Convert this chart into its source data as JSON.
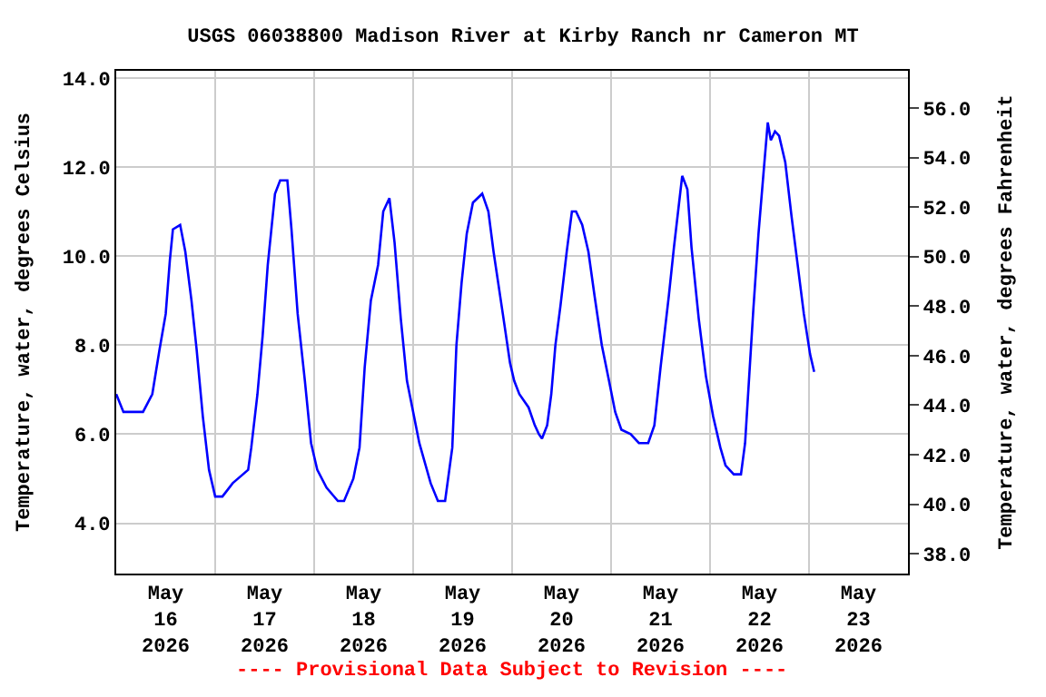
{
  "chart_data": {
    "type": "line",
    "title": "USGS 06038800 Madison River at Kirby Ranch nr Cameron MT",
    "ylabel": "Temperature, water, degrees Celsius",
    "y2label": "Temperature, water, degrees Fahrenheit",
    "annotations": [
      "---- Provisional Data Subject to Revision ----"
    ],
    "x": [
      "2026-05-16T00:00",
      "2026-05-16T01:45",
      "2026-05-16T06:30",
      "2026-05-16T08:45",
      "2026-05-16T10:30",
      "2026-05-16T12:00",
      "2026-05-16T13:00",
      "2026-05-16T13:45",
      "2026-05-16T15:30",
      "2026-05-16T16:45",
      "2026-05-16T18:15",
      "2026-05-16T19:30",
      "2026-05-16T21:00",
      "2026-05-16T22:30",
      "2026-05-17T00:00",
      "2026-05-17T01:45",
      "2026-05-17T04:15",
      "2026-05-17T08:00",
      "2026-05-17T08:45",
      "2026-05-17T10:15",
      "2026-05-17T11:30",
      "2026-05-17T12:45",
      "2026-05-17T14:30",
      "2026-05-17T15:45",
      "2026-05-17T17:30",
      "2026-05-17T18:30",
      "2026-05-17T20:00",
      "2026-05-17T21:45",
      "2026-05-17T23:15",
      "2026-05-18T00:45",
      "2026-05-18T03:00",
      "2026-05-18T05:45",
      "2026-05-18T07:15",
      "2026-05-18T09:30",
      "2026-05-18T11:00",
      "2026-05-18T12:15",
      "2026-05-18T13:45",
      "2026-05-18T15:30",
      "2026-05-18T16:45",
      "2026-05-18T18:15",
      "2026-05-18T19:30",
      "2026-05-18T21:00",
      "2026-05-18T22:30",
      "2026-05-19T01:30",
      "2026-05-19T04:15",
      "2026-05-19T06:00",
      "2026-05-19T07:45",
      "2026-05-19T09:30",
      "2026-05-19T10:30",
      "2026-05-19T11:45",
      "2026-05-19T13:00",
      "2026-05-19T14:30",
      "2026-05-19T16:45",
      "2026-05-19T18:15",
      "2026-05-19T19:30",
      "2026-05-19T21:45",
      "2026-05-19T23:30",
      "2026-05-20T00:30",
      "2026-05-20T01:45",
      "2026-05-20T04:00",
      "2026-05-20T05:30",
      "2026-05-20T06:30",
      "2026-05-20T07:15",
      "2026-05-20T08:30",
      "2026-05-20T09:30",
      "2026-05-20T10:30",
      "2026-05-20T11:45",
      "2026-05-20T13:15",
      "2026-05-20T14:30",
      "2026-05-20T15:30",
      "2026-05-20T17:00",
      "2026-05-20T18:30",
      "2026-05-20T20:00",
      "2026-05-20T21:45",
      "2026-05-20T23:30",
      "2026-05-21T01:00",
      "2026-05-21T02:30",
      "2026-05-21T04:45",
      "2026-05-21T06:45",
      "2026-05-21T09:00",
      "2026-05-21T10:30",
      "2026-05-21T12:00",
      "2026-05-21T13:00",
      "2026-05-21T14:00",
      "2026-05-21T15:15",
      "2026-05-21T16:30",
      "2026-05-21T17:15",
      "2026-05-21T18:30",
      "2026-05-21T19:30",
      "2026-05-21T21:15",
      "2026-05-21T23:00",
      "2026-05-22T00:45",
      "2026-05-22T02:30",
      "2026-05-22T03:45",
      "2026-05-22T05:45",
      "2026-05-22T07:30",
      "2026-05-22T08:30",
      "2026-05-22T09:30",
      "2026-05-22T10:30",
      "2026-05-22T11:45",
      "2026-05-22T13:00",
      "2026-05-22T14:00",
      "2026-05-22T14:45",
      "2026-05-22T15:45",
      "2026-05-22T16:45",
      "2026-05-22T18:15",
      "2026-05-22T19:45",
      "2026-05-22T21:15",
      "2026-05-22T22:45",
      "2026-05-23T00:15",
      "2026-05-23T01:15"
    ],
    "series": [
      {
        "color": "#0000ff",
        "values": [
          6.9,
          6.5,
          6.5,
          6.9,
          7.9,
          8.7,
          9.9,
          10.6,
          10.7,
          10.1,
          9.0,
          7.9,
          6.4,
          5.2,
          4.6,
          4.6,
          4.9,
          5.2,
          5.7,
          6.9,
          8.2,
          9.8,
          11.4,
          11.7,
          11.7,
          10.6,
          8.7,
          7.2,
          5.8,
          5.2,
          4.8,
          4.5,
          4.5,
          5.0,
          5.7,
          7.5,
          9.0,
          9.8,
          11.0,
          11.3,
          10.3,
          8.6,
          7.2,
          5.8,
          4.9,
          4.5,
          4.5,
          5.7,
          8.0,
          9.4,
          10.5,
          11.2,
          11.4,
          11.0,
          10.1,
          8.7,
          7.6,
          7.2,
          6.9,
          6.6,
          6.2,
          6.0,
          5.9,
          6.2,
          6.9,
          8.0,
          8.9,
          10.1,
          11.0,
          11.0,
          10.7,
          10.1,
          9.1,
          8.0,
          7.2,
          6.5,
          6.1,
          6.0,
          5.8,
          5.8,
          6.2,
          7.5,
          8.3,
          9.1,
          10.2,
          11.2,
          11.8,
          11.5,
          10.2,
          8.6,
          7.3,
          6.4,
          5.7,
          5.3,
          5.1,
          5.1,
          5.8,
          7.3,
          8.8,
          10.5,
          11.9,
          13.0,
          12.6,
          12.8,
          12.7,
          12.1,
          10.9,
          9.8,
          8.7,
          7.8,
          7.4
        ]
      }
    ],
    "xlim": [
      "2026-05-16T00:00",
      "2026-05-24T00:00"
    ],
    "xticks": [
      {
        "value": "2026-05-16T12:00",
        "label": "May\n16\n2026"
      },
      {
        "value": "2026-05-17T12:00",
        "label": "May\n17\n2026"
      },
      {
        "value": "2026-05-18T12:00",
        "label": "May\n18\n2026"
      },
      {
        "value": "2026-05-19T12:00",
        "label": "May\n19\n2026"
      },
      {
        "value": "2026-05-20T12:00",
        "label": "May\n20\n2026"
      },
      {
        "value": "2026-05-21T12:00",
        "label": "May\n21\n2026"
      },
      {
        "value": "2026-05-22T12:00",
        "label": "May\n22\n2026"
      },
      {
        "value": "2026-05-23T12:00",
        "label": "May\n23\n2026"
      },
      {
        "value": "2026-05-17T00:00",
        "label": null
      },
      {
        "value": "2026-05-18T00:00",
        "label": null
      },
      {
        "value": "2026-05-19T00:00",
        "label": null
      },
      {
        "value": "2026-05-20T00:00",
        "label": null
      },
      {
        "value": "2026-05-21T00:00",
        "label": null
      },
      {
        "value": "2026-05-22T00:00",
        "label": null
      },
      {
        "value": "2026-05-23T00:00",
        "label": null
      }
    ],
    "ylim": [
      2.87,
      14.16
    ],
    "yticks": [
      {
        "value": 4,
        "label": "4.0"
      },
      {
        "value": 6,
        "label": "6.0"
      },
      {
        "value": 8,
        "label": "8.0"
      },
      {
        "value": 10,
        "label": "10.0"
      },
      {
        "value": 12,
        "label": "12.0"
      },
      {
        "value": 14,
        "label": "14.0"
      }
    ],
    "y2lim": [
      37.2,
      57.5
    ],
    "y2ticks": [
      {
        "value": 38,
        "label": "38.0"
      },
      {
        "value": 40,
        "label": "40.0"
      },
      {
        "value": 42,
        "label": "42.0"
      },
      {
        "value": 44,
        "label": "44.0"
      },
      {
        "value": 46,
        "label": "46.0"
      },
      {
        "value": 48,
        "label": "48.0"
      },
      {
        "value": 50,
        "label": "50.0"
      },
      {
        "value": 52,
        "label": "52.0"
      },
      {
        "value": 54,
        "label": "54.0"
      },
      {
        "value": 56,
        "label": "56.0"
      }
    ],
    "grid": true,
    "marker": "none",
    "line_style": "solid"
  }
}
